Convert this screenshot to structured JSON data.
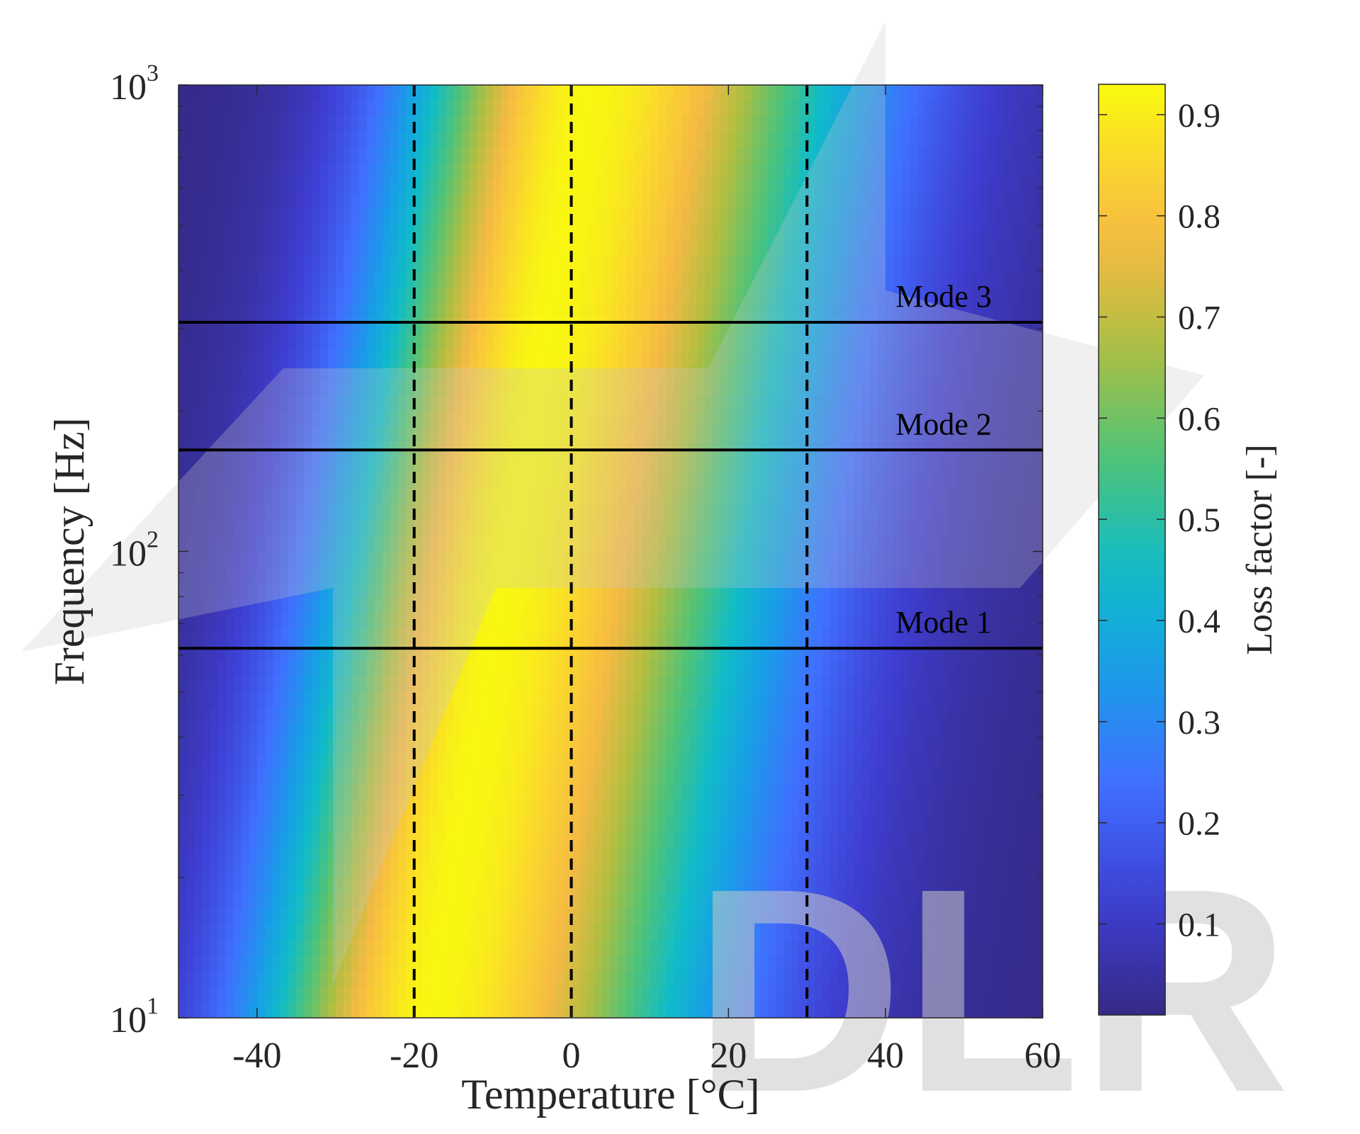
{
  "chart_data": {
    "type": "heatmap",
    "title": "",
    "xlabel": "Temperature [°C]",
    "ylabel": "Frequency [Hz]",
    "colorbar_label": "Loss factor [-]",
    "xlim": [
      -50,
      60
    ],
    "ylim": [
      10,
      1000
    ],
    "y_scale": "log",
    "clim": [
      0.01,
      0.93
    ],
    "colormap": "parula",
    "x_ticks": [
      "-40",
      "-20",
      "0",
      "20",
      "40",
      "60"
    ],
    "x_tick_values": [
      -40,
      -20,
      0,
      20,
      40,
      60
    ],
    "y_ticks": [
      {
        "base": "10",
        "exp": "1",
        "value": 10
      },
      {
        "base": "10",
        "exp": "2",
        "value": 100
      },
      {
        "base": "10",
        "exp": "3",
        "value": 1000
      }
    ],
    "colorbar_ticks": [
      "0.1",
      "0.2",
      "0.3",
      "0.4",
      "0.5",
      "0.6",
      "0.7",
      "0.8",
      "0.9"
    ],
    "colorbar_tick_values": [
      0.1,
      0.2,
      0.3,
      0.4,
      0.5,
      0.6,
      0.7,
      0.8,
      0.9
    ],
    "peak_ridge": {
      "temperature_at_10Hz": -18,
      "temperature_shift_per_decade": 10,
      "peak_value": 0.92
    },
    "vertical_lines": [
      {
        "x": -20,
        "style": "dashed"
      },
      {
        "x": 0,
        "style": "dashed"
      },
      {
        "x": 30,
        "style": "dashed"
      }
    ],
    "horizontal_lines": [
      {
        "y": 310,
        "label": "Mode 3"
      },
      {
        "y": 165,
        "label": "Mode 2"
      },
      {
        "y": 62,
        "label": "Mode 1"
      }
    ],
    "watermark": "DLR"
  },
  "colors": {
    "axis": "#262626",
    "line": "#000000",
    "watermark": "#c8c8c8"
  }
}
